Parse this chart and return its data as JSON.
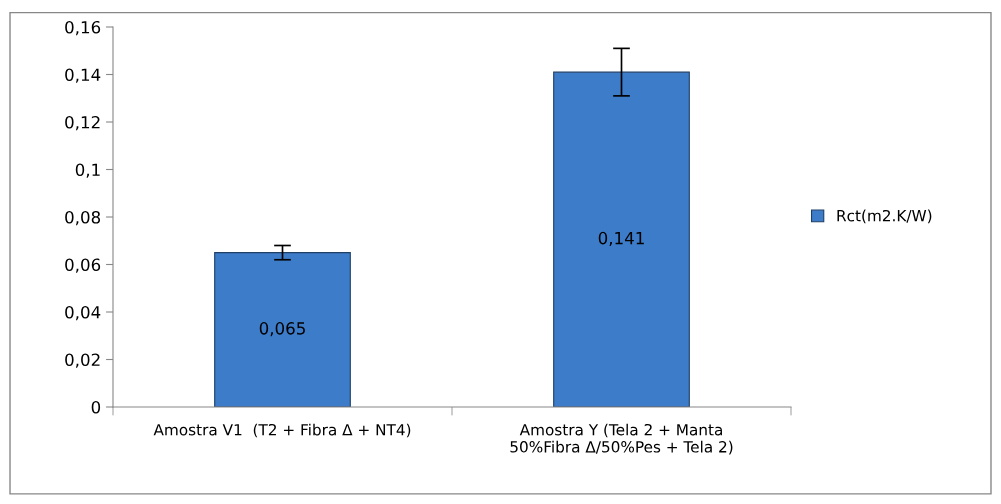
{
  "chart_data": {
    "type": "bar",
    "categories": [
      "Amostra V1  (T2 + Fibra Δ + NT4)",
      "Amostra Y (Tela 2 + Manta\n50%Fibra Δ/50%Pes + Tela 2)"
    ],
    "series": [
      {
        "name": "Rct(m2.K/W)",
        "color": "#3d7cc9",
        "values": [
          0.065,
          0.141
        ],
        "errors": [
          0.003,
          0.01
        ]
      }
    ],
    "ylim": [
      0,
      0.16
    ],
    "yticks": [
      0,
      {
        "value": 0.02,
        "label": "0,02"
      },
      {
        "value": 0.04,
        "label": "0,04"
      },
      {
        "value": 0.06,
        "label": "0,06"
      },
      {
        "value": 0.08,
        "label": "0,08"
      },
      {
        "value": 0.1,
        "label": "0,1"
      },
      {
        "value": 0.12,
        "label": "0,12"
      },
      {
        "value": 0.14,
        "label": "0,14"
      },
      {
        "value": 0.16,
        "label": "0,16"
      }
    ],
    "value_labels": [
      "0,065",
      "0,141"
    ],
    "legend": "right",
    "grid": false
  }
}
